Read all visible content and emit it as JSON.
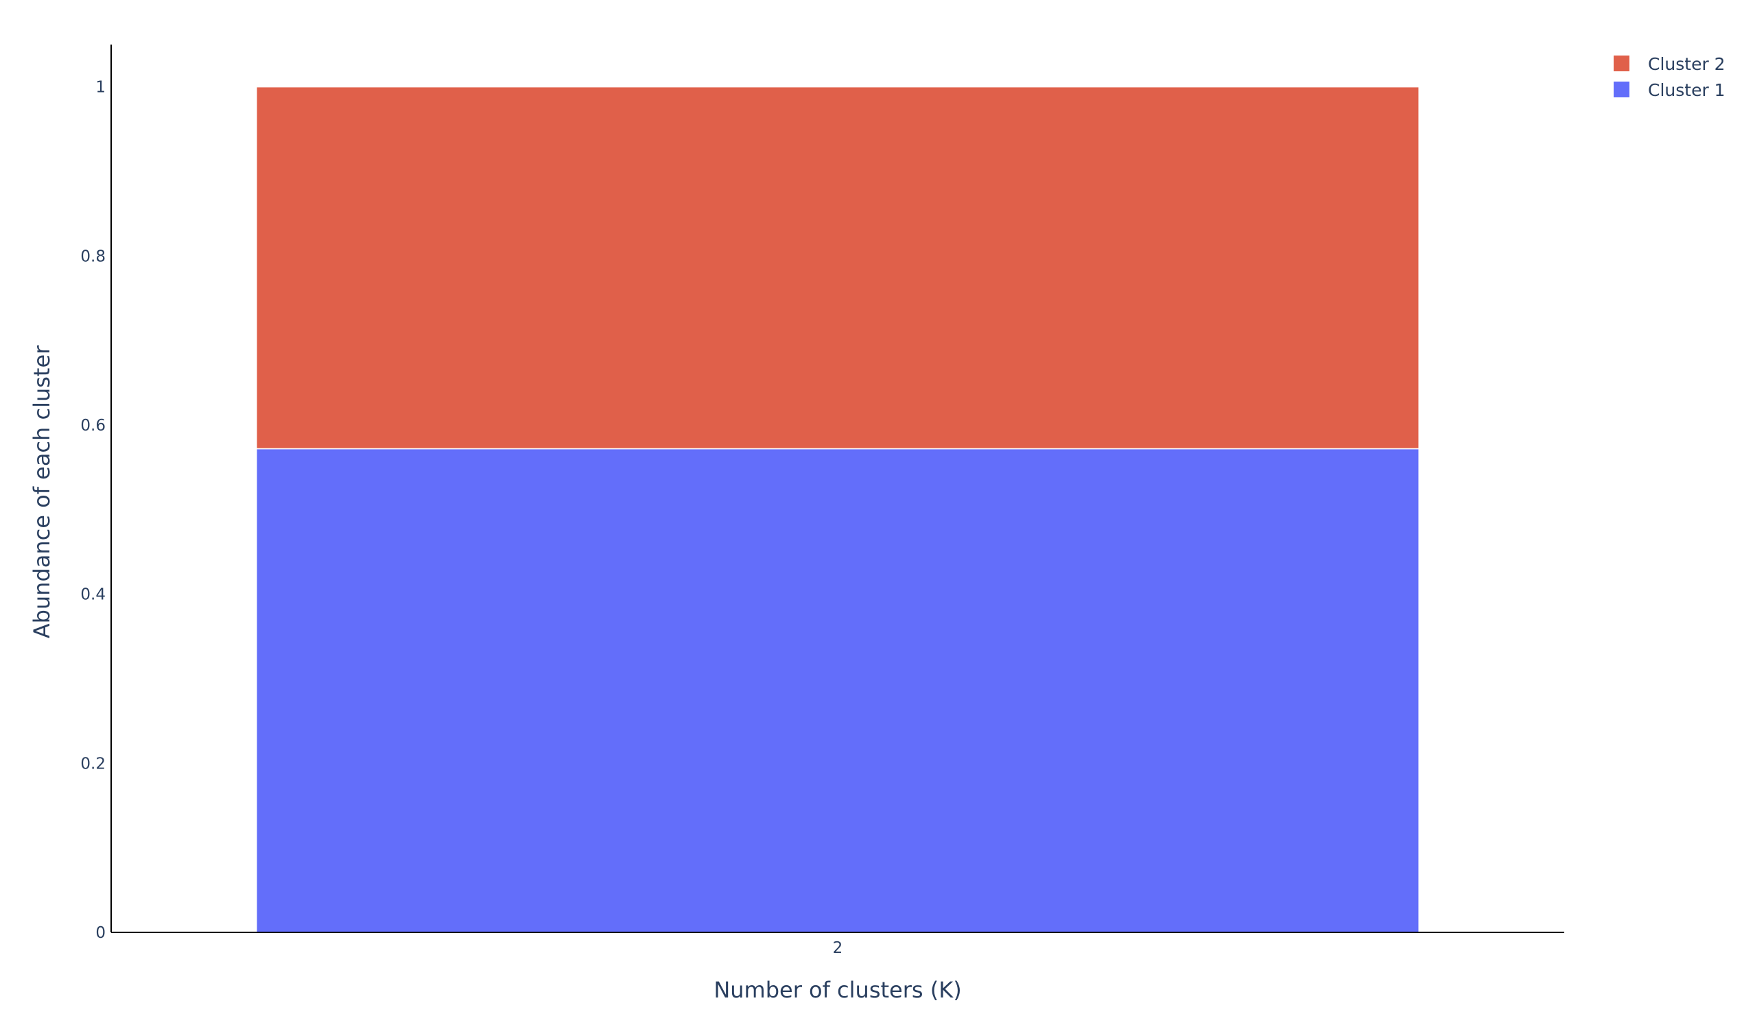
{
  "chart_data": {
    "type": "bar",
    "barmode": "stack",
    "categories": [
      "2"
    ],
    "x": [
      "2"
    ],
    "series": [
      {
        "name": "Cluster 1",
        "values": [
          0.572
        ],
        "color": "#636efa"
      },
      {
        "name": "Cluster 2",
        "values": [
          0.428
        ],
        "color": "#e0604a"
      }
    ],
    "xlabel": "Number of clusters (K)",
    "ylabel": "Abundance of each cluster",
    "ylim": [
      0,
      1.05
    ],
    "yticks": [
      0,
      0.2,
      0.4,
      0.6,
      0.8,
      1
    ],
    "ytick_labels": [
      "0",
      "0.2",
      "0.4",
      "0.6",
      "0.8",
      "1"
    ],
    "grid": false,
    "legend": {
      "placement": "top-right",
      "items": [
        "Cluster 2",
        "Cluster 1"
      ]
    }
  }
}
